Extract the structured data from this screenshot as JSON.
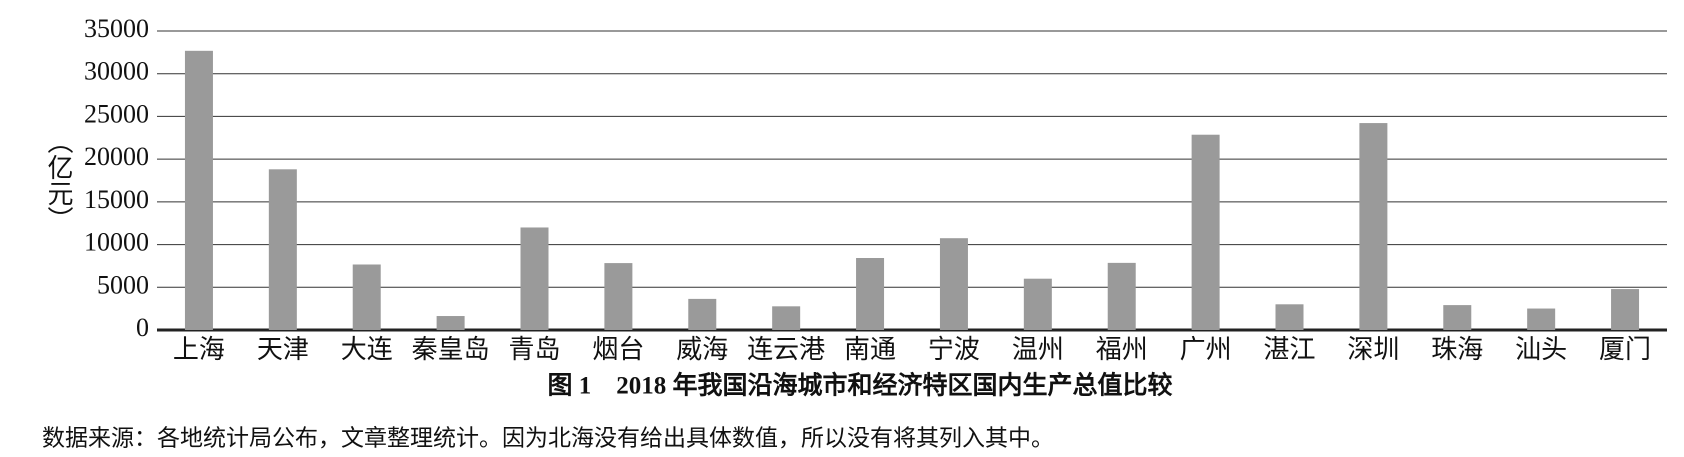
{
  "chart_data": {
    "type": "bar",
    "title": "图 1　2018 年我国沿海城市和经济特区国内生产总值比较",
    "note": "数据来源：各地统计局公布，文章整理统计。因为北海没有给出具体数值，所以没有将其列入其中。",
    "y_label": "（亿元）",
    "categories": [
      "上海",
      "天津",
      "大连",
      "秦皇岛",
      "青岛",
      "烟台",
      "威海",
      "连云港",
      "南通",
      "宁波",
      "温州",
      "福州",
      "广州",
      "湛江",
      "深圳",
      "珠海",
      "汕头",
      "厦门"
    ],
    "values": [
      32680,
      18810,
      7668,
      1635,
      12002,
      7832,
      3642,
      2772,
      8427,
      10746,
      6006,
      7857,
      22859,
      3008,
      24222,
      2915,
      2512,
      4791
    ],
    "color": "#9a9a9a",
    "ylim": [
      0,
      35000
    ],
    "yticks": [
      0,
      5000,
      10000,
      15000,
      20000,
      25000,
      30000,
      35000
    ],
    "grid": true
  }
}
